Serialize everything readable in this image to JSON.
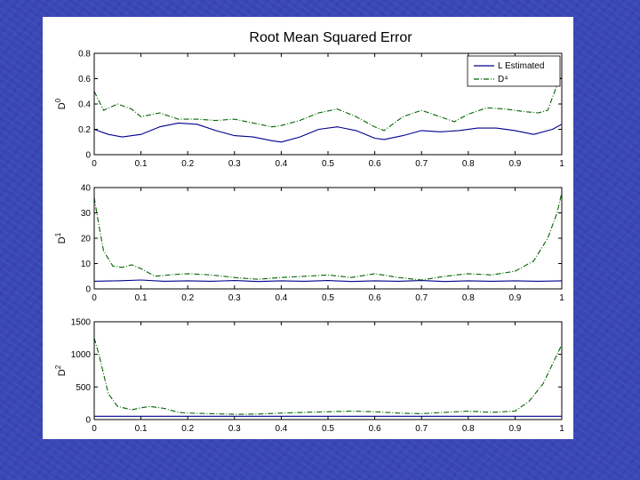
{
  "title": "Root Mean Squared Error",
  "colors": {
    "estimated": "#00008b",
    "d4": "#006400",
    "background": "#3a48b6",
    "panel": "#ffffff"
  },
  "legend": {
    "placement": "top-right",
    "entries": [
      "L Estimated",
      "D⁴"
    ]
  },
  "chart_data": [
    {
      "type": "line",
      "ylabel_base": "D",
      "ylabel_sup": "0",
      "xlim": [
        0,
        1
      ],
      "ylim": [
        0,
        0.8
      ],
      "x_ticks": [
        "0",
        "0.1",
        "0.2",
        "0.3",
        "0.4",
        "0.5",
        "0.6",
        "0.7",
        "0.8",
        "0.9",
        "1"
      ],
      "y_ticks": [
        "0",
        "0.2",
        "0.4",
        "0.6",
        "0.8"
      ],
      "series": [
        {
          "name": "L Estimated",
          "style": "solid",
          "x": [
            0,
            0.03,
            0.06,
            0.1,
            0.14,
            0.18,
            0.22,
            0.26,
            0.3,
            0.34,
            0.38,
            0.4,
            0.44,
            0.48,
            0.52,
            0.56,
            0.6,
            0.62,
            0.66,
            0.7,
            0.74,
            0.78,
            0.82,
            0.86,
            0.9,
            0.94,
            0.98,
            1
          ],
          "y": [
            0.2,
            0.16,
            0.14,
            0.16,
            0.22,
            0.25,
            0.24,
            0.19,
            0.15,
            0.14,
            0.11,
            0.1,
            0.14,
            0.2,
            0.22,
            0.19,
            0.13,
            0.12,
            0.15,
            0.19,
            0.18,
            0.19,
            0.21,
            0.21,
            0.19,
            0.16,
            0.2,
            0.24
          ]
        },
        {
          "name": "D⁴",
          "style": "dashdot",
          "x": [
            0,
            0.02,
            0.05,
            0.08,
            0.1,
            0.14,
            0.18,
            0.22,
            0.26,
            0.3,
            0.34,
            0.38,
            0.4,
            0.44,
            0.48,
            0.52,
            0.56,
            0.6,
            0.62,
            0.66,
            0.7,
            0.74,
            0.77,
            0.8,
            0.84,
            0.88,
            0.92,
            0.95,
            0.97,
            0.99,
            1
          ],
          "y": [
            0.5,
            0.35,
            0.4,
            0.36,
            0.3,
            0.33,
            0.28,
            0.28,
            0.27,
            0.28,
            0.25,
            0.22,
            0.23,
            0.27,
            0.33,
            0.36,
            0.3,
            0.22,
            0.19,
            0.3,
            0.35,
            0.3,
            0.26,
            0.32,
            0.37,
            0.36,
            0.34,
            0.33,
            0.35,
            0.55,
            0.62
          ]
        }
      ]
    },
    {
      "type": "line",
      "ylabel_base": "D",
      "ylabel_sup": "1",
      "xlim": [
        0,
        1
      ],
      "ylim": [
        0,
        40
      ],
      "x_ticks": [
        "0",
        "0.1",
        "0.2",
        "0.3",
        "0.4",
        "0.5",
        "0.6",
        "0.7",
        "0.8",
        "0.9",
        "1"
      ],
      "y_ticks": [
        "0",
        "10",
        "20",
        "30",
        "40"
      ],
      "series": [
        {
          "name": "L Estimated",
          "style": "solid",
          "x": [
            0,
            0.05,
            0.1,
            0.15,
            0.2,
            0.25,
            0.3,
            0.35,
            0.4,
            0.45,
            0.5,
            0.55,
            0.6,
            0.65,
            0.7,
            0.75,
            0.8,
            0.85,
            0.9,
            0.95,
            1
          ],
          "y": [
            3,
            3.2,
            3.5,
            3,
            3.2,
            3,
            3.3,
            2.9,
            3.2,
            3,
            3.3,
            2.9,
            3.2,
            3,
            3.3,
            2.9,
            3.2,
            3,
            3.2,
            3,
            3.2
          ]
        },
        {
          "name": "D⁴",
          "style": "dashdot",
          "x": [
            0,
            0.01,
            0.02,
            0.04,
            0.06,
            0.08,
            0.1,
            0.13,
            0.16,
            0.2,
            0.25,
            0.3,
            0.35,
            0.4,
            0.45,
            0.5,
            0.55,
            0.6,
            0.65,
            0.7,
            0.75,
            0.8,
            0.85,
            0.9,
            0.94,
            0.97,
            0.99,
            1
          ],
          "y": [
            36,
            25,
            15,
            9,
            8.5,
            9.5,
            8,
            5,
            5.5,
            6,
            5.5,
            4.5,
            3.8,
            4.5,
            5,
            5.5,
            4.5,
            6,
            4.5,
            3.5,
            5,
            6,
            5.5,
            7,
            11,
            20,
            30,
            38
          ]
        }
      ]
    },
    {
      "type": "line",
      "ylabel_base": "D",
      "ylabel_sup": "2",
      "xlim": [
        0,
        1
      ],
      "ylim": [
        0,
        1500
      ],
      "x_ticks": [
        "0",
        "0.1",
        "0.2",
        "0.3",
        "0.4",
        "0.5",
        "0.6",
        "0.7",
        "0.8",
        "0.9",
        "1"
      ],
      "y_ticks": [
        "0",
        "500",
        "1000",
        "1500"
      ],
      "series": [
        {
          "name": "L Estimated",
          "style": "solid",
          "x": [
            0,
            0.1,
            0.2,
            0.3,
            0.4,
            0.5,
            0.6,
            0.7,
            0.8,
            0.9,
            1
          ],
          "y": [
            50,
            50,
            50,
            50,
            50,
            50,
            50,
            50,
            50,
            50,
            50
          ]
        },
        {
          "name": "D⁴",
          "style": "dashdot",
          "x": [
            0,
            0.01,
            0.02,
            0.03,
            0.05,
            0.08,
            0.1,
            0.12,
            0.15,
            0.18,
            0.2,
            0.25,
            0.3,
            0.35,
            0.4,
            0.45,
            0.5,
            0.55,
            0.6,
            0.65,
            0.7,
            0.75,
            0.8,
            0.85,
            0.9,
            0.93,
            0.96,
            0.98,
            1
          ],
          "y": [
            1250,
            1000,
            700,
            400,
            200,
            150,
            180,
            200,
            170,
            110,
            100,
            90,
            80,
            85,
            100,
            110,
            120,
            130,
            120,
            100,
            90,
            110,
            130,
            110,
            130,
            280,
            550,
            850,
            1150
          ]
        }
      ]
    }
  ]
}
